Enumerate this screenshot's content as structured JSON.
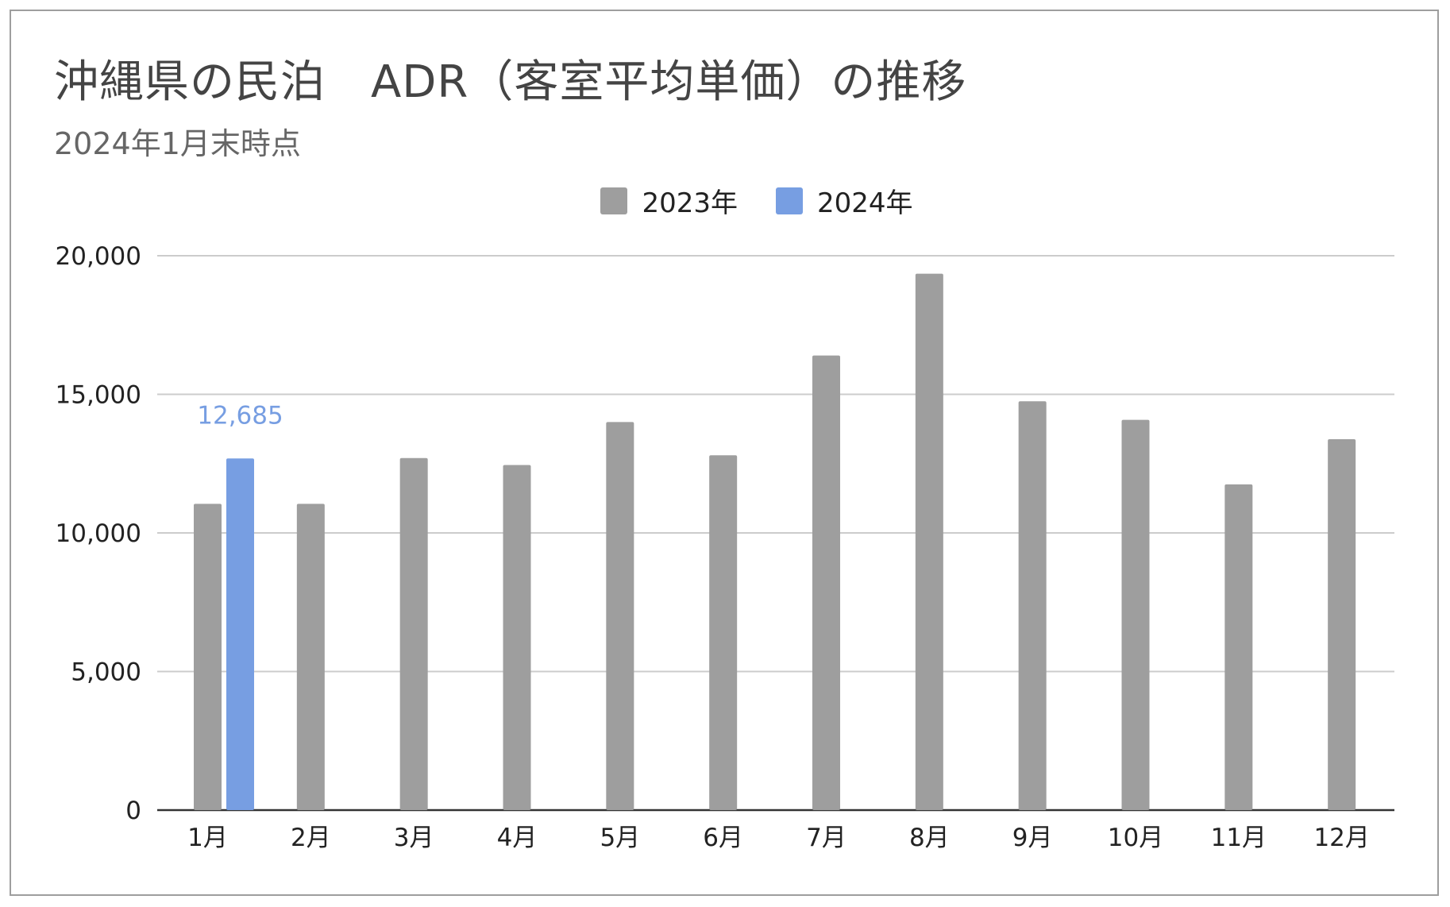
{
  "chart_data": {
    "type": "bar",
    "title": "沖縄県の民泊　ADR（客室平均単価）の推移",
    "subtitle": "2024年1月末時点",
    "categories": [
      "1月",
      "2月",
      "3月",
      "4月",
      "5月",
      "6月",
      "7月",
      "8月",
      "9月",
      "10月",
      "11月",
      "12月"
    ],
    "series": [
      {
        "name": "2023年",
        "color": "#9e9e9e",
        "values": [
          11050,
          11050,
          12700,
          12450,
          14000,
          12800,
          16400,
          19350,
          14750,
          14080,
          11750,
          13380
        ]
      },
      {
        "name": "2024年",
        "color": "#779ee2",
        "values": [
          12685,
          null,
          null,
          null,
          null,
          null,
          null,
          null,
          null,
          null,
          null,
          null
        ]
      }
    ],
    "data_labels": [
      {
        "series": "2024年",
        "category": "1月",
        "text": "12,685"
      }
    ],
    "ylim": [
      0,
      20000
    ],
    "yticks": [
      0,
      5000,
      10000,
      15000,
      20000
    ],
    "ytick_labels": [
      "0",
      "5,000",
      "10,000",
      "15,000",
      "20,000"
    ],
    "xlabel": "",
    "ylabel": "",
    "grid": true,
    "legend_position": "top-center"
  }
}
